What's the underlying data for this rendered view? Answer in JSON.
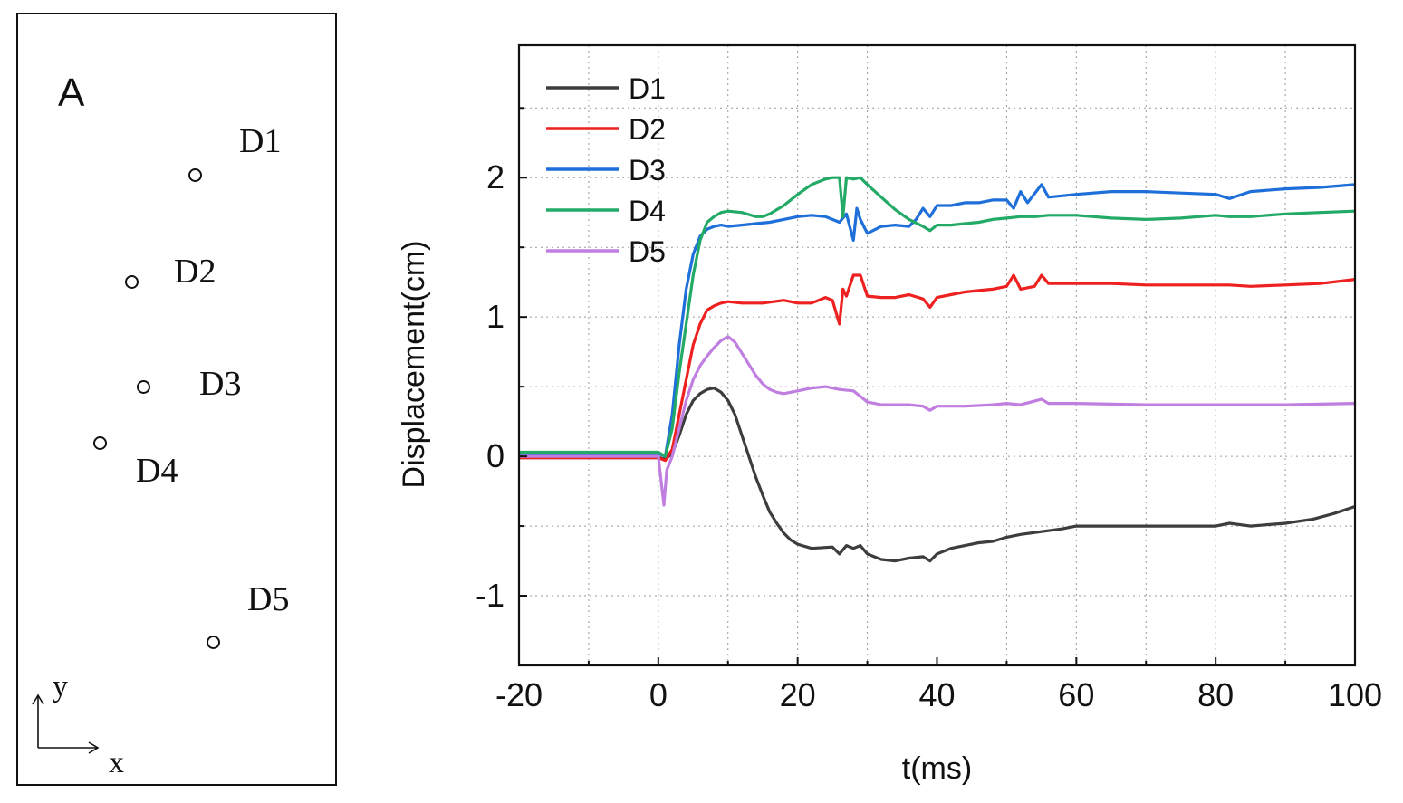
{
  "panel": {
    "letter": "A",
    "sensors": [
      {
        "label": "D1"
      },
      {
        "label": "D2"
      },
      {
        "label": "D3"
      },
      {
        "label": "D4"
      },
      {
        "label": "D5"
      }
    ],
    "axes": {
      "x": "x",
      "y": "y"
    }
  },
  "chart_data": {
    "type": "line",
    "title": "",
    "xlabel": "t(ms)",
    "ylabel": "Displacement(cm)",
    "xlim": [
      -20,
      100
    ],
    "ylim": [
      -1.5,
      2.95
    ],
    "xticks": [
      -20,
      0,
      20,
      40,
      60,
      80,
      100
    ],
    "yticks": [
      -1,
      0,
      1,
      2
    ],
    "grid": "dotted",
    "legend": "top-left",
    "series": [
      {
        "name": "D1",
        "color": "#3d3d3d",
        "points": [
          [
            -20,
            -0.01
          ],
          [
            0,
            -0.01
          ],
          [
            1,
            -0.02
          ],
          [
            2,
            0.02
          ],
          [
            3,
            0.15
          ],
          [
            4,
            0.3
          ],
          [
            5,
            0.4
          ],
          [
            6,
            0.45
          ],
          [
            7,
            0.48
          ],
          [
            8,
            0.49
          ],
          [
            9,
            0.46
          ],
          [
            10,
            0.4
          ],
          [
            11,
            0.3
          ],
          [
            12,
            0.15
          ],
          [
            13,
            0.0
          ],
          [
            14,
            -0.15
          ],
          [
            15,
            -0.28
          ],
          [
            16,
            -0.4
          ],
          [
            17,
            -0.48
          ],
          [
            18,
            -0.55
          ],
          [
            19,
            -0.6
          ],
          [
            20,
            -0.63
          ],
          [
            22,
            -0.66
          ],
          [
            25,
            -0.65
          ],
          [
            26,
            -0.7
          ],
          [
            27,
            -0.64
          ],
          [
            28,
            -0.66
          ],
          [
            29,
            -0.64
          ],
          [
            30,
            -0.7
          ],
          [
            32,
            -0.74
          ],
          [
            34,
            -0.75
          ],
          [
            36,
            -0.73
          ],
          [
            38,
            -0.72
          ],
          [
            39,
            -0.75
          ],
          [
            40,
            -0.7
          ],
          [
            42,
            -0.66
          ],
          [
            44,
            -0.64
          ],
          [
            46,
            -0.62
          ],
          [
            48,
            -0.61
          ],
          [
            50,
            -0.58
          ],
          [
            52,
            -0.56
          ],
          [
            55,
            -0.54
          ],
          [
            58,
            -0.52
          ],
          [
            60,
            -0.5
          ],
          [
            65,
            -0.5
          ],
          [
            70,
            -0.5
          ],
          [
            75,
            -0.5
          ],
          [
            80,
            -0.5
          ],
          [
            82,
            -0.48
          ],
          [
            85,
            -0.5
          ],
          [
            90,
            -0.48
          ],
          [
            94,
            -0.45
          ],
          [
            97,
            -0.41
          ],
          [
            100,
            -0.36
          ]
        ]
      },
      {
        "name": "D2",
        "color": "#ee2020",
        "points": [
          [
            -20,
            -0.01
          ],
          [
            0,
            -0.01
          ],
          [
            1,
            -0.03
          ],
          [
            2,
            0.05
          ],
          [
            3,
            0.3
          ],
          [
            4,
            0.55
          ],
          [
            5,
            0.8
          ],
          [
            6,
            0.95
          ],
          [
            7,
            1.05
          ],
          [
            8,
            1.08
          ],
          [
            9,
            1.1
          ],
          [
            10,
            1.11
          ],
          [
            12,
            1.1
          ],
          [
            15,
            1.1
          ],
          [
            18,
            1.12
          ],
          [
            20,
            1.1
          ],
          [
            22,
            1.1
          ],
          [
            24,
            1.14
          ],
          [
            25,
            1.12
          ],
          [
            26,
            0.95
          ],
          [
            26.5,
            1.2
          ],
          [
            27,
            1.15
          ],
          [
            28,
            1.3
          ],
          [
            29,
            1.3
          ],
          [
            30,
            1.15
          ],
          [
            32,
            1.14
          ],
          [
            34,
            1.14
          ],
          [
            36,
            1.16
          ],
          [
            38,
            1.13
          ],
          [
            39,
            1.07
          ],
          [
            40,
            1.14
          ],
          [
            42,
            1.16
          ],
          [
            44,
            1.18
          ],
          [
            46,
            1.19
          ],
          [
            48,
            1.2
          ],
          [
            50,
            1.22
          ],
          [
            51,
            1.3
          ],
          [
            52,
            1.2
          ],
          [
            54,
            1.22
          ],
          [
            55,
            1.3
          ],
          [
            56,
            1.24
          ],
          [
            60,
            1.24
          ],
          [
            65,
            1.24
          ],
          [
            70,
            1.23
          ],
          [
            75,
            1.23
          ],
          [
            80,
            1.23
          ],
          [
            82,
            1.23
          ],
          [
            85,
            1.22
          ],
          [
            90,
            1.23
          ],
          [
            95,
            1.24
          ],
          [
            100,
            1.27
          ]
        ]
      },
      {
        "name": "D3",
        "color": "#1e6fd9",
        "points": [
          [
            -20,
            0.02
          ],
          [
            0,
            0.02
          ],
          [
            1,
            0.0
          ],
          [
            2,
            0.3
          ],
          [
            3,
            0.8
          ],
          [
            4,
            1.2
          ],
          [
            5,
            1.45
          ],
          [
            6,
            1.58
          ],
          [
            7,
            1.63
          ],
          [
            8,
            1.65
          ],
          [
            9,
            1.66
          ],
          [
            10,
            1.65
          ],
          [
            12,
            1.66
          ],
          [
            14,
            1.67
          ],
          [
            16,
            1.68
          ],
          [
            18,
            1.7
          ],
          [
            20,
            1.72
          ],
          [
            22,
            1.73
          ],
          [
            24,
            1.72
          ],
          [
            25,
            1.7
          ],
          [
            26,
            1.68
          ],
          [
            27,
            1.74
          ],
          [
            28,
            1.55
          ],
          [
            28.5,
            1.78
          ],
          [
            29,
            1.7
          ],
          [
            30,
            1.6
          ],
          [
            32,
            1.65
          ],
          [
            34,
            1.66
          ],
          [
            36,
            1.65
          ],
          [
            37,
            1.7
          ],
          [
            38,
            1.78
          ],
          [
            39,
            1.72
          ],
          [
            40,
            1.8
          ],
          [
            42,
            1.8
          ],
          [
            44,
            1.82
          ],
          [
            46,
            1.82
          ],
          [
            48,
            1.84
          ],
          [
            50,
            1.84
          ],
          [
            51,
            1.78
          ],
          [
            52,
            1.9
          ],
          [
            53,
            1.82
          ],
          [
            55,
            1.95
          ],
          [
            56,
            1.86
          ],
          [
            60,
            1.88
          ],
          [
            65,
            1.9
          ],
          [
            70,
            1.9
          ],
          [
            75,
            1.89
          ],
          [
            80,
            1.88
          ],
          [
            82,
            1.85
          ],
          [
            85,
            1.9
          ],
          [
            90,
            1.92
          ],
          [
            95,
            1.93
          ],
          [
            100,
            1.95
          ]
        ]
      },
      {
        "name": "D4",
        "color": "#22aa66",
        "points": [
          [
            -20,
            0.03
          ],
          [
            0,
            0.03
          ],
          [
            1,
            0.0
          ],
          [
            2,
            0.2
          ],
          [
            3,
            0.6
          ],
          [
            4,
            0.95
          ],
          [
            5,
            1.3
          ],
          [
            6,
            1.55
          ],
          [
            7,
            1.68
          ],
          [
            8,
            1.72
          ],
          [
            9,
            1.75
          ],
          [
            10,
            1.76
          ],
          [
            12,
            1.75
          ],
          [
            14,
            1.72
          ],
          [
            15,
            1.72
          ],
          [
            16,
            1.74
          ],
          [
            18,
            1.8
          ],
          [
            20,
            1.88
          ],
          [
            22,
            1.95
          ],
          [
            24,
            1.99
          ],
          [
            25,
            2.0
          ],
          [
            26,
            2.0
          ],
          [
            26.5,
            1.72
          ],
          [
            27,
            2.0
          ],
          [
            28,
            1.99
          ],
          [
            29,
            2.0
          ],
          [
            30,
            1.95
          ],
          [
            32,
            1.86
          ],
          [
            34,
            1.77
          ],
          [
            36,
            1.7
          ],
          [
            38,
            1.65
          ],
          [
            39,
            1.62
          ],
          [
            40,
            1.66
          ],
          [
            42,
            1.66
          ],
          [
            44,
            1.67
          ],
          [
            46,
            1.68
          ],
          [
            48,
            1.7
          ],
          [
            50,
            1.71
          ],
          [
            52,
            1.72
          ],
          [
            54,
            1.72
          ],
          [
            56,
            1.73
          ],
          [
            60,
            1.73
          ],
          [
            65,
            1.71
          ],
          [
            70,
            1.7
          ],
          [
            75,
            1.71
          ],
          [
            80,
            1.73
          ],
          [
            82,
            1.72
          ],
          [
            85,
            1.72
          ],
          [
            90,
            1.74
          ],
          [
            95,
            1.75
          ],
          [
            100,
            1.76
          ]
        ]
      },
      {
        "name": "D5",
        "color": "#c07ee0",
        "points": [
          [
            -20,
            0.0
          ],
          [
            0,
            0.0
          ],
          [
            0.8,
            -0.35
          ],
          [
            1.2,
            -0.1
          ],
          [
            2,
            0.0
          ],
          [
            3,
            0.2
          ],
          [
            4,
            0.4
          ],
          [
            5,
            0.55
          ],
          [
            6,
            0.65
          ],
          [
            7,
            0.72
          ],
          [
            8,
            0.78
          ],
          [
            9,
            0.83
          ],
          [
            10,
            0.86
          ],
          [
            11,
            0.82
          ],
          [
            12,
            0.74
          ],
          [
            13,
            0.66
          ],
          [
            14,
            0.58
          ],
          [
            15,
            0.52
          ],
          [
            16,
            0.48
          ],
          [
            17,
            0.46
          ],
          [
            18,
            0.45
          ],
          [
            20,
            0.47
          ],
          [
            22,
            0.49
          ],
          [
            24,
            0.5
          ],
          [
            26,
            0.48
          ],
          [
            28,
            0.47
          ],
          [
            29,
            0.43
          ],
          [
            30,
            0.39
          ],
          [
            32,
            0.37
          ],
          [
            34,
            0.37
          ],
          [
            36,
            0.37
          ],
          [
            38,
            0.36
          ],
          [
            39,
            0.33
          ],
          [
            40,
            0.36
          ],
          [
            44,
            0.36
          ],
          [
            48,
            0.37
          ],
          [
            50,
            0.38
          ],
          [
            52,
            0.37
          ],
          [
            55,
            0.41
          ],
          [
            56,
            0.38
          ],
          [
            60,
            0.38
          ],
          [
            70,
            0.37
          ],
          [
            80,
            0.37
          ],
          [
            90,
            0.37
          ],
          [
            100,
            0.38
          ]
        ]
      }
    ]
  }
}
